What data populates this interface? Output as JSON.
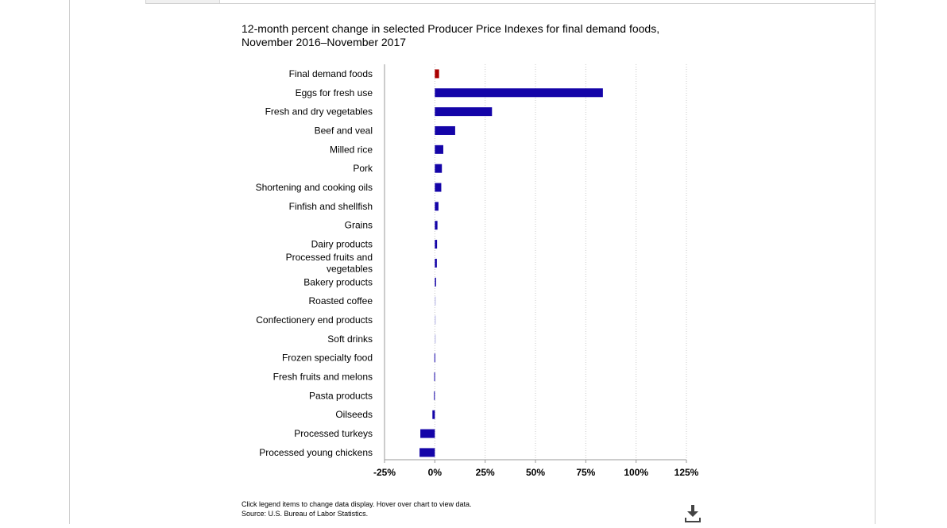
{
  "chart_data": {
    "type": "bar",
    "orientation": "horizontal",
    "title": "12-month percent change in selected Producer Price Indexes for final demand foods, November 2016–November 2017",
    "title_lines": [
      "12-month percent change in selected Producer Price Indexes for final demand foods,",
      "November 2016–November 2017"
    ],
    "categories": [
      [
        "Final demand foods"
      ],
      [
        "Eggs for fresh use"
      ],
      [
        "Fresh and dry vegetables"
      ],
      [
        "Beef and veal"
      ],
      [
        "Milled rice"
      ],
      [
        "Pork"
      ],
      [
        "Shortening and cooking oils"
      ],
      [
        "Finfish and shellfish"
      ],
      [
        "Grains"
      ],
      [
        "Dairy products"
      ],
      [
        "Processed fruits and",
        "vegetables"
      ],
      [
        "Bakery products"
      ],
      [
        "Roasted coffee"
      ],
      [
        "Confectionery end products"
      ],
      [
        "Soft drinks"
      ],
      [
        "Frozen specialty food"
      ],
      [
        "Fresh fruits and melons"
      ],
      [
        "Pasta products"
      ],
      [
        "Oilseeds"
      ],
      [
        "Processed turkeys"
      ],
      [
        "Processed young chickens"
      ]
    ],
    "values": [
      2.1,
      83.5,
      28.4,
      10.1,
      4.2,
      3.5,
      3.2,
      1.8,
      1.3,
      1.1,
      1.0,
      0.6,
      0.4,
      0.4,
      0.3,
      -0.2,
      -0.3,
      -0.4,
      -1.2,
      -7.2,
      -7.6
    ],
    "bar_colors": [
      "#aa0000",
      "#1404a8",
      "#1404a8",
      "#1404a8",
      "#1404a8",
      "#1404a8",
      "#1404a8",
      "#1404a8",
      "#1404a8",
      "#1404a8",
      "#1404a8",
      "#1404a8",
      "#b3b3e6",
      "#b3b3e6",
      "#b3b3e6",
      "#1404a8",
      "#1404a8",
      "#1404a8",
      "#1404a8",
      "#1404a8",
      "#1404a8"
    ],
    "xlim": [
      -25,
      125
    ],
    "xticks": [
      -25,
      0,
      25,
      50,
      75,
      100,
      125
    ],
    "xtick_labels": [
      "-25%",
      "0%",
      "25%",
      "50%",
      "75%",
      "100%",
      "125%"
    ],
    "xlabel": "",
    "ylabel": "",
    "grid": "vertical dotted",
    "legend": "none"
  },
  "footer": {
    "note": "Click legend items to change data display. Hover over chart to view data.",
    "source": "Source: U.S. Bureau of Labor Statistics."
  },
  "icons": {
    "download": "download-icon"
  }
}
